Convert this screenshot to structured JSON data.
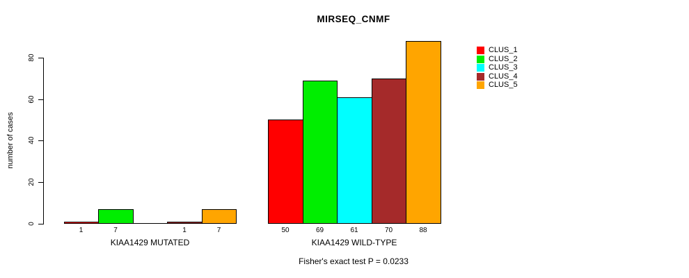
{
  "figure": {
    "title": "MIRSEQ_CNMF",
    "annotation": "Fisher's exact test P = 0.0233"
  },
  "chart_data": {
    "type": "bar",
    "title": "MIRSEQ_CNMF",
    "xlabel": "",
    "ylabel": "number of cases",
    "ylim": [
      0,
      88
    ],
    "yticks": [
      0,
      20,
      40,
      60,
      80
    ],
    "grid": false,
    "categories": [
      "KIAA1429 MUTATED",
      "KIAA1429 WILD-TYPE"
    ],
    "series": [
      {
        "name": "CLUS_1",
        "color": "#FF0000",
        "values": [
          1,
          50
        ]
      },
      {
        "name": "CLUS_2",
        "color": "#00EE00",
        "values": [
          7,
          69
        ]
      },
      {
        "name": "CLUS_3",
        "color": "#00FFFF",
        "values": [
          0,
          61
        ]
      },
      {
        "name": "CLUS_4",
        "color": "#A52A2A",
        "values": [
          1,
          70
        ]
      },
      {
        "name": "CLUS_5",
        "color": "#FFA500",
        "values": [
          7,
          88
        ]
      }
    ],
    "bar_value_labels": [
      [
        "1",
        "7",
        "",
        "1",
        "7"
      ],
      [
        "50",
        "69",
        "61",
        "70",
        "88"
      ]
    ],
    "legend_position": "right-outside-top",
    "annotation": "Fisher's exact test P = 0.0233"
  }
}
